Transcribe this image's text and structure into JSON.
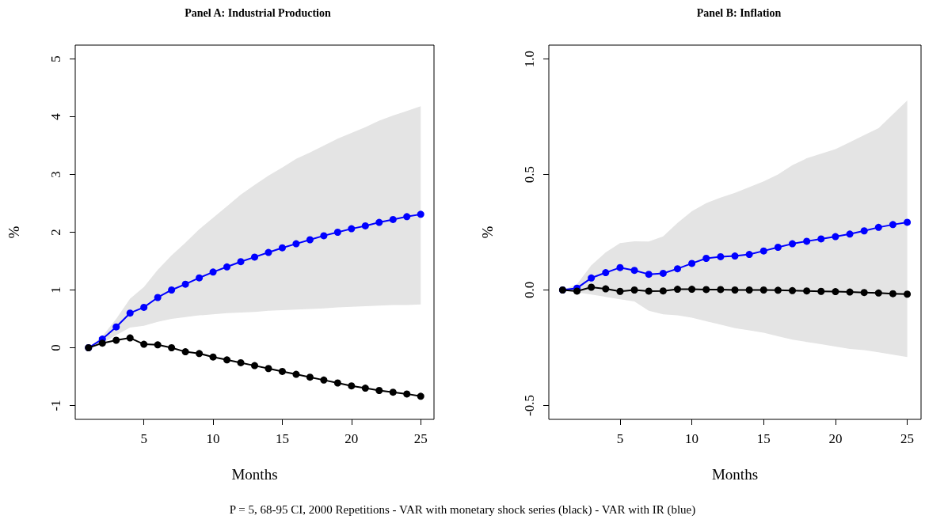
{
  "chart_data": [
    {
      "type": "line",
      "title": "Panel A: Industrial Production",
      "xlabel": "Months",
      "ylabel": "%",
      "annotations": [
        "P = 5, 68-95 CI, 2000 Repetitions - VAR with monetary shock series (black) - VAR with IR (blue)"
      ],
      "x": [
        1,
        2,
        3,
        4,
        5,
        6,
        7,
        8,
        9,
        10,
        11,
        12,
        13,
        14,
        15,
        16,
        17,
        18,
        19,
        20,
        21,
        22,
        23,
        24,
        25
      ],
      "series": [
        {
          "color": "#0000ff",
          "values": [
            0,
            0.15,
            0.36,
            0.6,
            0.7,
            0.87,
            1.0,
            1.1,
            1.21,
            1.31,
            1.4,
            1.49,
            1.57,
            1.65,
            1.73,
            1.8,
            1.87,
            1.94,
            2.0,
            2.06,
            2.11,
            2.17,
            2.22,
            2.27,
            2.31
          ],
          "lower": [
            0,
            0.08,
            0.22,
            0.35,
            0.38,
            0.45,
            0.5,
            0.53,
            0.56,
            0.58,
            0.6,
            0.61,
            0.62,
            0.64,
            0.65,
            0.66,
            0.67,
            0.68,
            0.7,
            0.71,
            0.72,
            0.73,
            0.74,
            0.74,
            0.75
          ],
          "upper": [
            0,
            0.2,
            0.5,
            0.85,
            1.05,
            1.35,
            1.6,
            1.82,
            2.05,
            2.25,
            2.45,
            2.65,
            2.82,
            2.98,
            3.12,
            3.27,
            3.38,
            3.5,
            3.62,
            3.72,
            3.82,
            3.93,
            4.02,
            4.1,
            4.18
          ]
        },
        {
          "color": "#000000",
          "values": [
            0,
            0.08,
            0.13,
            0.17,
            0.06,
            0.05,
            0.0,
            -0.07,
            -0.1,
            -0.16,
            -0.21,
            -0.26,
            -0.31,
            -0.36,
            -0.41,
            -0.46,
            -0.51,
            -0.56,
            -0.61,
            -0.66,
            -0.7,
            -0.74,
            -0.77,
            -0.8,
            -0.84
          ]
        }
      ],
      "xlim": [
        0.04,
        25.96
      ],
      "ylim": [
        -1.24,
        5.24
      ],
      "xticks": [
        5,
        10,
        15,
        20,
        25
      ],
      "yticks": [
        -1,
        0,
        1,
        2,
        3,
        4,
        5
      ],
      "grid": false,
      "marker": "circle",
      "line_style": "solid"
    },
    {
      "type": "line",
      "title": "Panel B: Inflation",
      "xlabel": "Months",
      "ylabel": "%",
      "x": [
        1,
        2,
        3,
        4,
        5,
        6,
        7,
        8,
        9,
        10,
        11,
        12,
        13,
        14,
        15,
        16,
        17,
        18,
        19,
        20,
        21,
        22,
        23,
        24,
        25
      ],
      "series": [
        {
          "color": "#0000ff",
          "values": [
            0,
            0.008,
            0.052,
            0.075,
            0.097,
            0.085,
            0.068,
            0.072,
            0.092,
            0.115,
            0.137,
            0.144,
            0.147,
            0.154,
            0.169,
            0.185,
            0.2,
            0.211,
            0.221,
            0.231,
            0.242,
            0.256,
            0.271,
            0.283,
            0.293
          ],
          "lower": [
            0,
            -0.01,
            -0.02,
            -0.03,
            -0.04,
            -0.05,
            -0.09,
            -0.105,
            -0.11,
            -0.12,
            -0.135,
            -0.15,
            -0.165,
            -0.175,
            -0.185,
            -0.2,
            -0.215,
            -0.225,
            -0.235,
            -0.245,
            -0.255,
            -0.26,
            -0.27,
            -0.28,
            -0.29
          ],
          "upper": [
            0,
            0.025,
            0.107,
            0.163,
            0.203,
            0.211,
            0.21,
            0.232,
            0.29,
            0.341,
            0.376,
            0.4,
            0.42,
            0.445,
            0.47,
            0.5,
            0.54,
            0.57,
            0.59,
            0.61,
            0.64,
            0.67,
            0.7,
            0.76,
            0.82
          ]
        },
        {
          "color": "#000000",
          "values": [
            0,
            -0.005,
            0.012,
            0.005,
            -0.006,
            0,
            -0.005,
            -0.004,
            0.003,
            0.003,
            0.002,
            0.002,
            0,
            0,
            0,
            -0.001,
            -0.003,
            -0.004,
            -0.006,
            -0.007,
            -0.009,
            -0.011,
            -0.013,
            -0.016,
            -0.018
          ]
        }
      ],
      "xlim": [
        0.04,
        25.96
      ],
      "ylim": [
        -0.56,
        1.06
      ],
      "xticks": [
        5,
        10,
        15,
        20,
        25
      ],
      "yticks": [
        {
          "value": -0.5,
          "label": "-0.5"
        },
        {
          "value": 0,
          "label": "0.0"
        },
        {
          "value": 0.5,
          "label": "0.5"
        },
        {
          "value": 1,
          "label": "1.0"
        }
      ],
      "grid": false,
      "marker": "circle",
      "line_style": "solid"
    }
  ]
}
